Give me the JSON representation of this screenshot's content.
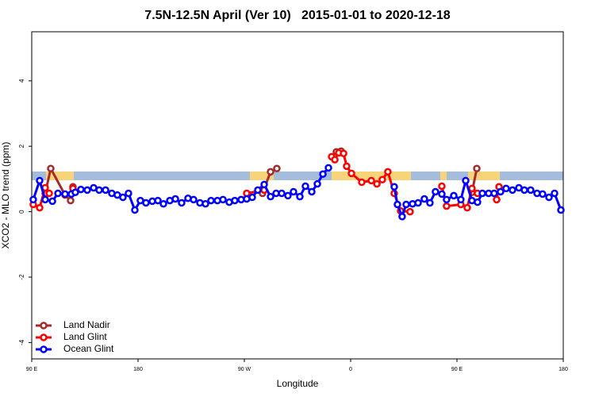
{
  "chart_data": {
    "type": "line",
    "title": "7.5N-12.5N April (Ver 10)   2015-01-01 to 2020-12-18",
    "x_label": "Longitude",
    "y_label": "XCO2 - MLO trend (ppm)",
    "xlim": [
      90,
      540
    ],
    "ylim": [
      -4.5,
      5.5
    ],
    "xticks": [
      {
        "value": 90,
        "label": "90 E"
      },
      {
        "value": 180,
        "label": "180"
      },
      {
        "value": 270,
        "label": "90 W"
      },
      {
        "value": 360,
        "label": "0"
      },
      {
        "value": 450,
        "label": "90 E"
      },
      {
        "value": 540,
        "label": "180"
      }
    ],
    "yticks": [
      -4,
      -2,
      0,
      2,
      4
    ],
    "legend": "bottom-left",
    "series": [
      {
        "name": "Land Nadir",
        "color": "#a52a2a",
        "x": [
          101.4,
          106.1,
          118.2,
          122.9,
          124.9,
          null,
          285.4,
          292.2,
          297.5,
          null,
          347.9,
          351.9,
          null,
          462.7,
          466.8,
          null,
          483.6
        ],
        "values": [
          0.56,
          1.32,
          0.51,
          0.34,
          0.76,
          null,
          0.56,
          1.22,
          1.32,
          null,
          1.83,
          1.85,
          null,
          0.59,
          1.32,
          null,
          0.37
        ]
      },
      {
        "name": "Land Glint",
        "color": "#ff0000",
        "x": [
          91.3,
          96.7,
          101.4,
          104.8,
          null,
          124.9,
          null,
          272.0,
          286.8,
          null,
          343.9,
          346.6,
          349.9,
          354.0,
          356.6,
          360.7,
          369.4,
          377.5,
          382.2,
          386.8,
          391.5,
          396.9,
          402.3,
          410.3,
          null,
          437.2,
          441.2,
          453.3,
          458.7,
          462.7,
          467.4,
          null,
          483.6,
          485.6
        ],
        "values": [
          0.22,
          0.12,
          0.73,
          0.56,
          null,
          0.71,
          null,
          0.56,
          0.66,
          null,
          1.68,
          1.59,
          1.8,
          1.78,
          1.39,
          1.17,
          0.9,
          0.95,
          0.85,
          0.98,
          1.22,
          0.56,
          0.02,
          0.0,
          null,
          0.78,
          0.17,
          0.22,
          0.12,
          0.71,
          0.56,
          null,
          0.37,
          0.76
        ]
      },
      {
        "name": "Ocean Glint",
        "color": "#0000ff",
        "x": [
          91.3,
          96.7,
          101.4,
          107.5,
          112.2,
          118.2,
          123.6,
          126.9,
          131.6,
          137.0,
          142.4,
          147.1,
          152.5,
          157.8,
          162.5,
          167.2,
          171.9,
          177.3,
          182.0,
          186.7,
          192.1,
          196.8,
          201.5,
          206.9,
          211.6,
          216.9,
          222.3,
          227.0,
          232.4,
          237.1,
          241.8,
          247.2,
          251.9,
          257.2,
          261.9,
          267.3,
          272.0,
          276.7,
          281.4,
          286.8,
          292.2,
          296.9,
          301.6,
          306.9,
          311.6,
          317.0,
          321.7,
          327.1,
          331.8,
          336.5,
          341.2,
          null,
          396.9,
          399.6,
          403.6,
          407.0,
          412.4,
          417.1,
          422.4,
          427.1,
          431.8,
          437.2,
          441.2,
          447.3,
          453.3,
          457.4,
          462.7,
          467.4,
          471.5,
          476.8,
          481.5,
          486.9,
          491.6,
          497.0,
          502.4,
          507.1,
          512.4,
          517.8,
          522.5,
          527.9,
          532.6,
          538.0
        ],
        "values": [
          0.37,
          0.95,
          0.37,
          0.32,
          0.56,
          0.54,
          0.54,
          0.59,
          0.68,
          0.66,
          0.73,
          0.66,
          0.66,
          0.56,
          0.51,
          0.44,
          0.56,
          0.05,
          0.34,
          0.27,
          0.32,
          0.34,
          0.24,
          0.34,
          0.39,
          0.27,
          0.41,
          0.37,
          0.27,
          0.24,
          0.34,
          0.34,
          0.37,
          0.29,
          0.34,
          0.37,
          0.39,
          0.44,
          0.66,
          0.83,
          0.46,
          0.56,
          0.56,
          0.49,
          0.61,
          0.46,
          0.78,
          0.61,
          0.85,
          1.15,
          1.34,
          null,
          0.76,
          0.22,
          -0.15,
          0.22,
          0.24,
          0.27,
          0.39,
          0.27,
          0.61,
          0.54,
          0.37,
          0.49,
          0.37,
          0.95,
          0.34,
          0.29,
          0.56,
          0.56,
          0.56,
          0.61,
          0.71,
          0.66,
          0.73,
          0.66,
          0.66,
          0.56,
          0.54,
          0.44,
          0.56,
          0.05
        ]
      }
    ]
  }
}
